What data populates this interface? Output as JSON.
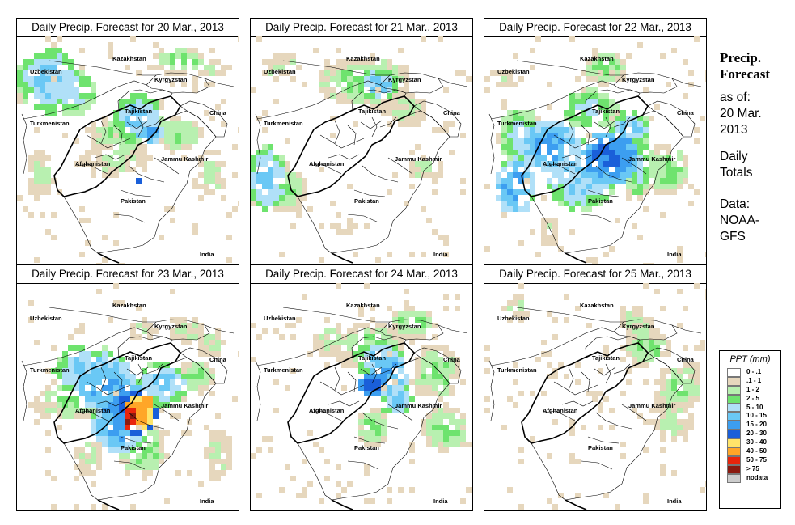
{
  "panels": [
    {
      "title": "Daily Precip. Forecast for  20 Mar., 2013",
      "precip": "d20"
    },
    {
      "title": "Daily Precip. Forecast for  21 Mar., 2013",
      "precip": "d21"
    },
    {
      "title": "Daily Precip. Forecast for  22 Mar., 2013",
      "precip": "d22"
    },
    {
      "title": "Daily Precip. Forecast for  23 Mar., 2013",
      "precip": "d23"
    },
    {
      "title": "Daily Precip. Forecast for  24 Mar., 2013",
      "precip": "d24"
    },
    {
      "title": "Daily Precip. Forecast for  25 Mar., 2013",
      "precip": "d25"
    }
  ],
  "map_labels": {
    "kazakhstan": "Kazakhstan",
    "uzbekistan": "Uzbekistan",
    "kyrgyzstan": "Kyrgyzstan",
    "tajikistan": "Tajikistan",
    "china": "China",
    "turkmenistan": "Turkmenistan",
    "afghanistan": "Afghanistan",
    "jammu_kashmir": "Jammu Kashmir",
    "pakistan": "Pakistan",
    "india": "India"
  },
  "side": {
    "title_line1": "Precip.",
    "title_line2": "Forecast",
    "asof_line1": "as of:",
    "asof_line2": "20 Mar.",
    "asof_line3": "2013",
    "totals_line1": "Daily",
    "totals_line2": "Totals",
    "data_line1": "Data:",
    "data_line2": "NOAA-",
    "data_line3": "GFS"
  },
  "legend": {
    "title": "PPT (mm)",
    "items": [
      {
        "label": "0 - .1",
        "color": "#ffffff"
      },
      {
        "label": ".1 - 1",
        "color": "#e6d7bd"
      },
      {
        "label": "1 - 2",
        "color": "#b8f0b0"
      },
      {
        "label": "2 - 5",
        "color": "#6ee36e"
      },
      {
        "label": "5 - 10",
        "color": "#b0e0f8"
      },
      {
        "label": "10 - 15",
        "color": "#6ac8f5"
      },
      {
        "label": "15 - 20",
        "color": "#3c9ef0"
      },
      {
        "label": "20 - 30",
        "color": "#1a5fd9"
      },
      {
        "label": "30 - 40",
        "color": "#ffe46a"
      },
      {
        "label": "40 - 50",
        "color": "#ffa628"
      },
      {
        "label": "50 - 75",
        "color": "#e8250c"
      },
      {
        "label": "> 75",
        "color": "#8b1a10"
      },
      {
        "label": "nodata",
        "color": "#cccccc"
      }
    ]
  }
}
